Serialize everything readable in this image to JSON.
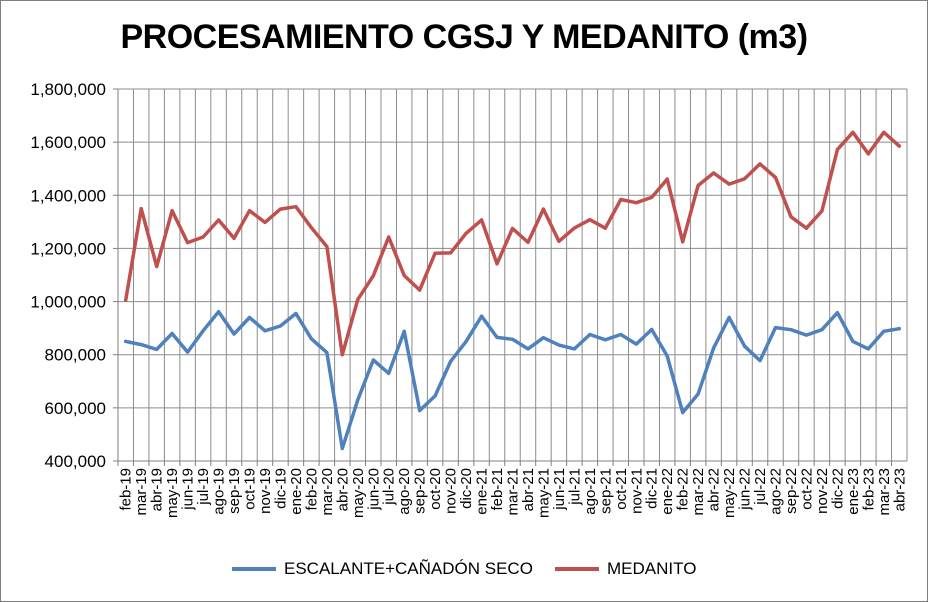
{
  "chart_data": {
    "type": "line",
    "title": "PROCESAMIENTO CGSJ Y MEDANITO (m3)",
    "xlabel": "",
    "ylabel": "",
    "ylim": [
      400000,
      1800000
    ],
    "ytick_values": [
      400000,
      600000,
      800000,
      1000000,
      1200000,
      1400000,
      1600000,
      1800000
    ],
    "ytick_labels": [
      "400,000",
      "600,000",
      "800,000",
      "1,000,000",
      "1,200,000",
      "1,400,000",
      "1,600,000",
      "1,800,000"
    ],
    "grid": true,
    "legend_position": "bottom",
    "categories": [
      "feb-19",
      "mar-19",
      "abr-19",
      "may-19",
      "jun-19",
      "jul-19",
      "ago-19",
      "sep-19",
      "oct-19",
      "nov-19",
      "dic-19",
      "ene-20",
      "feb-20",
      "mar-20",
      "abr-20",
      "may-20",
      "jun-20",
      "jul-20",
      "ago-20",
      "sep-20",
      "oct-20",
      "nov-20",
      "dic-20",
      "ene-21",
      "feb-21",
      "mar-21",
      "abr-21",
      "may-21",
      "jun-21",
      "jul-21",
      "ago-21",
      "sep-21",
      "oct-21",
      "nov-21",
      "dic-21",
      "ene-22",
      "feb-22",
      "mar-22",
      "abr-22",
      "may-22",
      "jun-22",
      "jul-22",
      "ago-22",
      "sep-22",
      "oct-22",
      "nov-22",
      "dic-22",
      "ene-23",
      "feb-23",
      "mar-23",
      "abr-23"
    ],
    "series": [
      {
        "name": "ESCALANTE+CAÑADÓN SECO",
        "color": "#4f81bd",
        "values": [
          850000,
          838000,
          820000,
          880000,
          810000,
          890000,
          962000,
          878000,
          940000,
          890000,
          908000,
          955000,
          860000,
          808000,
          447000,
          630000,
          780000,
          730000,
          888000,
          590000,
          645000,
          775000,
          850000,
          945000,
          865000,
          858000,
          822000,
          864000,
          836000,
          822000,
          876000,
          856000,
          876000,
          840000,
          895000,
          795000,
          582000,
          652000,
          825000,
          940000,
          832000,
          778000,
          902000,
          894000,
          874000,
          894000,
          958000,
          850000,
          822000,
          888000,
          898000
        ]
      },
      {
        "name": "MEDANITO",
        "color": "#c0504d",
        "values": [
          1005000,
          1350000,
          1132000,
          1342000,
          1222000,
          1243000,
          1307000,
          1238000,
          1342000,
          1298000,
          1348000,
          1357000,
          1278000,
          1207000,
          800000,
          1008000,
          1097000,
          1243000,
          1098000,
          1043000,
          1182000,
          1183000,
          1257000,
          1307000,
          1142000,
          1275000,
          1223000,
          1348000,
          1227000,
          1277000,
          1308000,
          1276000,
          1384000,
          1372000,
          1392000,
          1461000,
          1225000,
          1437000,
          1484000,
          1442000,
          1462000,
          1518000,
          1467000,
          1319000,
          1276000,
          1341000,
          1572000,
          1637000,
          1556000,
          1637000,
          1585000
        ]
      }
    ]
  }
}
